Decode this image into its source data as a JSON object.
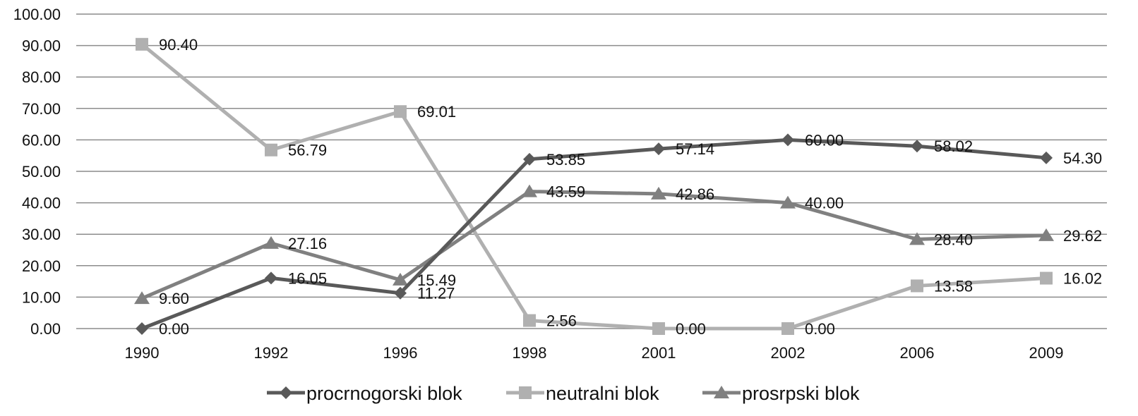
{
  "chart_data": {
    "type": "line",
    "categories": [
      "1990",
      "1992",
      "1996",
      "1998",
      "2001",
      "2002",
      "2006",
      "2009"
    ],
    "ylim": [
      0,
      100
    ],
    "yticks": [
      "0.00",
      "10.00",
      "20.00",
      "30.00",
      "40.00",
      "50.00",
      "60.00",
      "70.00",
      "80.00",
      "90.00",
      "100.00"
    ],
    "grid": true,
    "legend_position": "bottom",
    "series": [
      {
        "name": "procrnogorski blok",
        "marker": "diamond",
        "color": "#595959",
        "values": [
          0.0,
          16.05,
          11.27,
          53.85,
          57.14,
          60.0,
          58.02,
          54.3
        ],
        "labels": [
          "0.00",
          "16.05",
          "11.27",
          "53.85",
          "57.14",
          "60.00",
          "58.02",
          "54.30"
        ]
      },
      {
        "name": "neutralni blok",
        "marker": "square",
        "color": "#b0b0b0",
        "values": [
          90.4,
          56.79,
          69.01,
          2.56,
          0.0,
          0.0,
          13.58,
          16.02
        ],
        "labels": [
          "90.40",
          "56.79",
          "69.01",
          "2.56",
          "0.00",
          "0.00",
          "13.58",
          "16.02"
        ]
      },
      {
        "name": "prosrpski blok",
        "marker": "triangle",
        "color": "#808080",
        "values": [
          9.6,
          27.16,
          15.49,
          43.59,
          42.86,
          40.0,
          28.4,
          29.62
        ],
        "labels": [
          "9.60",
          "27.16",
          "15.49",
          "43.59",
          "42.86",
          "40.00",
          "28.40",
          "29.62"
        ]
      }
    ]
  }
}
